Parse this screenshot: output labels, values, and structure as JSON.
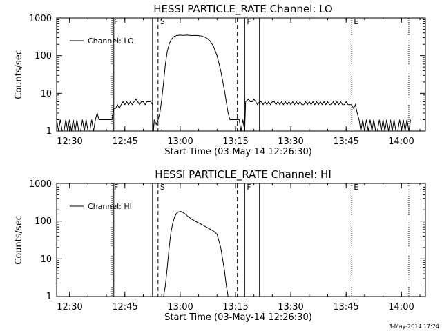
{
  "footer": {
    "datestamp": "3-May-2014 17:24"
  },
  "chart_data": [
    {
      "type": "line",
      "title": "HESSI PARTICLE_RATE Channel: LO",
      "xlabel": "Start Time (03-May-14 12:26:30)",
      "ylabel": "Counts/sec",
      "yscale": "log",
      "ylim": [
        1,
        1000
      ],
      "y_ticks": [
        1,
        10,
        100,
        1000
      ],
      "y_tick_labels": [
        "1",
        "10",
        "100",
        "1000"
      ],
      "xlim": [
        "12:26:30",
        "14:06:30"
      ],
      "x_ticks": [
        "12:30",
        "12:45",
        "13:00",
        "13:15",
        "13:30",
        "13:45",
        "14:00"
      ],
      "legend": {
        "label": "Channel: LO",
        "position": "top-left"
      },
      "markers": [
        {
          "label": "F",
          "time": "12:41:30",
          "style": "dotted"
        },
        {
          "label": "",
          "time": "12:42:00",
          "style": "solid"
        },
        {
          "label": "",
          "time": "12:52:30",
          "style": "solid"
        },
        {
          "label": "S",
          "time": "12:54:00",
          "style": "dashed"
        },
        {
          "label": "",
          "time": "13:15:30",
          "style": "dashed"
        },
        {
          "label": "F",
          "time": "13:17:30",
          "style": "solid"
        },
        {
          "label": "",
          "time": "13:21:30",
          "style": "solid"
        },
        {
          "label": "E",
          "time": "13:46:30",
          "style": "dotted"
        },
        {
          "label": "",
          "time": "14:02:00",
          "style": "dotted"
        }
      ],
      "series": [
        {
          "name": "Channel: LO",
          "points": [
            [
              "12:26:30",
              2
            ],
            [
              "12:27:00",
              1
            ],
            [
              "12:27:30",
              2
            ],
            [
              "12:28:00",
              1
            ],
            [
              "12:28:30",
              1
            ],
            [
              "12:29:00",
              2
            ],
            [
              "12:29:30",
              1
            ],
            [
              "12:30:00",
              2
            ],
            [
              "12:30:30",
              1
            ],
            [
              "12:31:00",
              2
            ],
            [
              "12:31:30",
              1
            ],
            [
              "12:32:00",
              2
            ],
            [
              "12:32:30",
              1
            ],
            [
              "12:33:00",
              1
            ],
            [
              "12:33:30",
              2
            ],
            [
              "12:34:00",
              1
            ],
            [
              "12:34:30",
              2
            ],
            [
              "12:35:00",
              1
            ],
            [
              "12:35:30",
              1
            ],
            [
              "12:36:00",
              2
            ],
            [
              "12:36:30",
              1
            ],
            [
              "12:37:00",
              2
            ],
            [
              "12:37:30",
              3
            ],
            [
              "12:38:00",
              2
            ],
            [
              "12:39:00",
              2
            ],
            [
              "12:40:00",
              2
            ],
            [
              "12:41:00",
              2
            ],
            [
              "12:41:30",
              2
            ],
            [
              "12:42:00",
              4
            ],
            [
              "12:42:30",
              4
            ],
            [
              "12:43:00",
              5
            ],
            [
              "12:43:30",
              4
            ],
            [
              "12:44:00",
              5
            ],
            [
              "12:44:30",
              6
            ],
            [
              "12:45:00",
              5
            ],
            [
              "12:45:30",
              6
            ],
            [
              "12:46:00",
              5
            ],
            [
              "12:46:30",
              6
            ],
            [
              "12:47:00",
              5
            ],
            [
              "12:47:30",
              6
            ],
            [
              "12:48:00",
              7
            ],
            [
              "12:48:30",
              6
            ],
            [
              "12:49:00",
              5
            ],
            [
              "12:49:30",
              6
            ],
            [
              "12:50:00",
              6
            ],
            [
              "12:50:30",
              5
            ],
            [
              "12:51:00",
              6
            ],
            [
              "12:51:30",
              6
            ],
            [
              "12:52:00",
              6
            ],
            [
              "12:52:30",
              5
            ],
            [
              "12:52:45",
              1
            ],
            [
              "12:53:00",
              2
            ],
            [
              "12:53:30",
              1.5
            ],
            [
              "12:54:00",
              2
            ],
            [
              "12:54:30",
              3
            ],
            [
              "12:55:00",
              7
            ],
            [
              "12:55:30",
              20
            ],
            [
              "12:56:00",
              60
            ],
            [
              "12:56:30",
              130
            ],
            [
              "12:57:00",
              200
            ],
            [
              "12:57:30",
              260
            ],
            [
              "12:58:00",
              300
            ],
            [
              "12:58:30",
              330
            ],
            [
              "12:59:00",
              340
            ],
            [
              "13:00:00",
              350
            ],
            [
              "13:01:00",
              345
            ],
            [
              "13:02:00",
              350
            ],
            [
              "13:03:00",
              340
            ],
            [
              "13:04:00",
              345
            ],
            [
              "13:05:00",
              340
            ],
            [
              "13:06:00",
              330
            ],
            [
              "13:07:00",
              300
            ],
            [
              "13:08:00",
              250
            ],
            [
              "13:09:00",
              180
            ],
            [
              "13:10:00",
              100
            ],
            [
              "13:11:00",
              40
            ],
            [
              "13:12:00",
              12
            ],
            [
              "13:12:30",
              6
            ],
            [
              "13:13:00",
              3
            ],
            [
              "13:13:30",
              2
            ],
            [
              "13:14:00",
              2
            ],
            [
              "13:15:00",
              2
            ],
            [
              "13:16:00",
              2
            ],
            [
              "13:16:30",
              1
            ],
            [
              "13:17:00",
              2
            ],
            [
              "13:17:30",
              1
            ],
            [
              "13:17:45",
              6
            ],
            [
              "13:18:30",
              7
            ],
            [
              "13:19:00",
              6
            ],
            [
              "13:19:30",
              6
            ],
            [
              "13:20:00",
              7
            ],
            [
              "13:20:30",
              6
            ],
            [
              "13:21:00",
              5
            ],
            [
              "13:21:30",
              6
            ],
            [
              "13:22:00",
              6
            ],
            [
              "13:22:30",
              5
            ],
            [
              "13:23:00",
              6
            ],
            [
              "13:23:30",
              5
            ],
            [
              "13:24:00",
              6
            ],
            [
              "13:24:30",
              5
            ],
            [
              "13:25:00",
              6
            ],
            [
              "13:25:30",
              6
            ],
            [
              "13:26:00",
              5
            ],
            [
              "13:26:30",
              6
            ],
            [
              "13:27:00",
              5
            ],
            [
              "13:27:30",
              6
            ],
            [
              "13:28:00",
              5
            ],
            [
              "13:28:30",
              6
            ],
            [
              "13:29:00",
              5
            ],
            [
              "13:29:30",
              6
            ],
            [
              "13:30:00",
              5
            ],
            [
              "13:30:30",
              6
            ],
            [
              "13:31:00",
              5
            ],
            [
              "13:31:30",
              6
            ],
            [
              "13:32:00",
              5
            ],
            [
              "13:32:30",
              6
            ],
            [
              "13:33:00",
              5
            ],
            [
              "13:33:30",
              5
            ],
            [
              "13:34:00",
              6
            ],
            [
              "13:34:30",
              5
            ],
            [
              "13:35:00",
              6
            ],
            [
              "13:35:30",
              5
            ],
            [
              "13:36:00",
              6
            ],
            [
              "13:36:30",
              5
            ],
            [
              "13:37:00",
              6
            ],
            [
              "13:37:30",
              5
            ],
            [
              "13:38:00",
              6
            ],
            [
              "13:38:30",
              5
            ],
            [
              "13:39:00",
              6
            ],
            [
              "13:39:30",
              5
            ],
            [
              "13:40:00",
              6
            ],
            [
              "13:40:30",
              5
            ],
            [
              "13:41:00",
              5
            ],
            [
              "13:41:30",
              6
            ],
            [
              "13:42:00",
              5
            ],
            [
              "13:42:30",
              6
            ],
            [
              "13:43:00",
              5
            ],
            [
              "13:43:30",
              6
            ],
            [
              "13:44:00",
              5
            ],
            [
              "13:44:30",
              5
            ],
            [
              "13:45:00",
              6
            ],
            [
              "13:45:30",
              5
            ],
            [
              "13:46:00",
              5
            ],
            [
              "13:46:30",
              5
            ],
            [
              "13:47:00",
              4
            ],
            [
              "13:47:30",
              5
            ],
            [
              "13:48:00",
              3
            ],
            [
              "13:48:30",
              2
            ],
            [
              "13:49:00",
              1
            ],
            [
              "13:49:30",
              2
            ],
            [
              "13:50:00",
              1
            ],
            [
              "13:50:30",
              2
            ],
            [
              "13:51:00",
              1
            ],
            [
              "13:51:30",
              2
            ],
            [
              "13:52:00",
              1
            ],
            [
              "13:52:30",
              2
            ],
            [
              "13:53:00",
              1
            ],
            [
              "13:53:30",
              1
            ],
            [
              "13:54:00",
              2
            ],
            [
              "13:54:30",
              1
            ],
            [
              "13:55:00",
              2
            ],
            [
              "13:55:30",
              1
            ],
            [
              "13:56:00",
              2
            ],
            [
              "13:56:30",
              1
            ],
            [
              "13:57:00",
              2
            ],
            [
              "13:57:30",
              1
            ],
            [
              "13:58:00",
              2
            ],
            [
              "13:58:30",
              1
            ],
            [
              "13:59:00",
              1
            ],
            [
              "13:59:30",
              2
            ],
            [
              "14:00:00",
              1
            ],
            [
              "14:00:30",
              2
            ],
            [
              "14:01:00",
              1
            ],
            [
              "14:01:30",
              2
            ],
            [
              "14:02:00",
              1
            ],
            [
              "14:02:30",
              2
            ]
          ]
        }
      ]
    },
    {
      "type": "line",
      "title": "HESSI PARTICLE_RATE Channel: HI",
      "xlabel": "Start Time (03-May-14 12:26:30)",
      "ylabel": "Counts/sec",
      "yscale": "log",
      "ylim": [
        1,
        1000
      ],
      "y_ticks": [
        1,
        10,
        100,
        1000
      ],
      "y_tick_labels": [
        "1",
        "10",
        "100",
        "1000"
      ],
      "xlim": [
        "12:26:30",
        "14:06:30"
      ],
      "x_ticks": [
        "12:30",
        "12:45",
        "13:00",
        "13:15",
        "13:30",
        "13:45",
        "14:00"
      ],
      "legend": {
        "label": "Channel: HI",
        "position": "top-left"
      },
      "markers": [
        {
          "label": "F",
          "time": "12:41:30",
          "style": "dotted"
        },
        {
          "label": "",
          "time": "12:42:00",
          "style": "solid"
        },
        {
          "label": "",
          "time": "12:52:30",
          "style": "solid"
        },
        {
          "label": "S",
          "time": "12:54:00",
          "style": "dashed"
        },
        {
          "label": "",
          "time": "13:15:30",
          "style": "dashed"
        },
        {
          "label": "F",
          "time": "13:17:30",
          "style": "solid"
        },
        {
          "label": "",
          "time": "13:21:30",
          "style": "solid"
        },
        {
          "label": "E",
          "time": "13:46:30",
          "style": "dotted"
        },
        {
          "label": "",
          "time": "14:02:00",
          "style": "dotted"
        }
      ],
      "series": [
        {
          "name": "Channel: HI",
          "points": [
            [
              "12:55:30",
              1
            ],
            [
              "12:56:00",
              2
            ],
            [
              "12:56:30",
              6
            ],
            [
              "12:57:00",
              20
            ],
            [
              "12:57:30",
              50
            ],
            [
              "12:58:00",
              90
            ],
            [
              "12:58:30",
              130
            ],
            [
              "12:59:00",
              160
            ],
            [
              "12:59:30",
              175
            ],
            [
              "13:00:00",
              180
            ],
            [
              "13:00:30",
              175
            ],
            [
              "13:01:00",
              165
            ],
            [
              "13:01:30",
              150
            ],
            [
              "13:02:00",
              135
            ],
            [
              "13:03:00",
              115
            ],
            [
              "13:04:00",
              100
            ],
            [
              "13:05:00",
              90
            ],
            [
              "13:06:00",
              80
            ],
            [
              "13:07:00",
              70
            ],
            [
              "13:08:00",
              62
            ],
            [
              "13:09:00",
              55
            ],
            [
              "13:10:00",
              45
            ],
            [
              "13:11:00",
              20
            ],
            [
              "13:12:00",
              5
            ],
            [
              "13:12:30",
              2
            ],
            [
              "13:13:00",
              1
            ]
          ]
        }
      ]
    }
  ]
}
